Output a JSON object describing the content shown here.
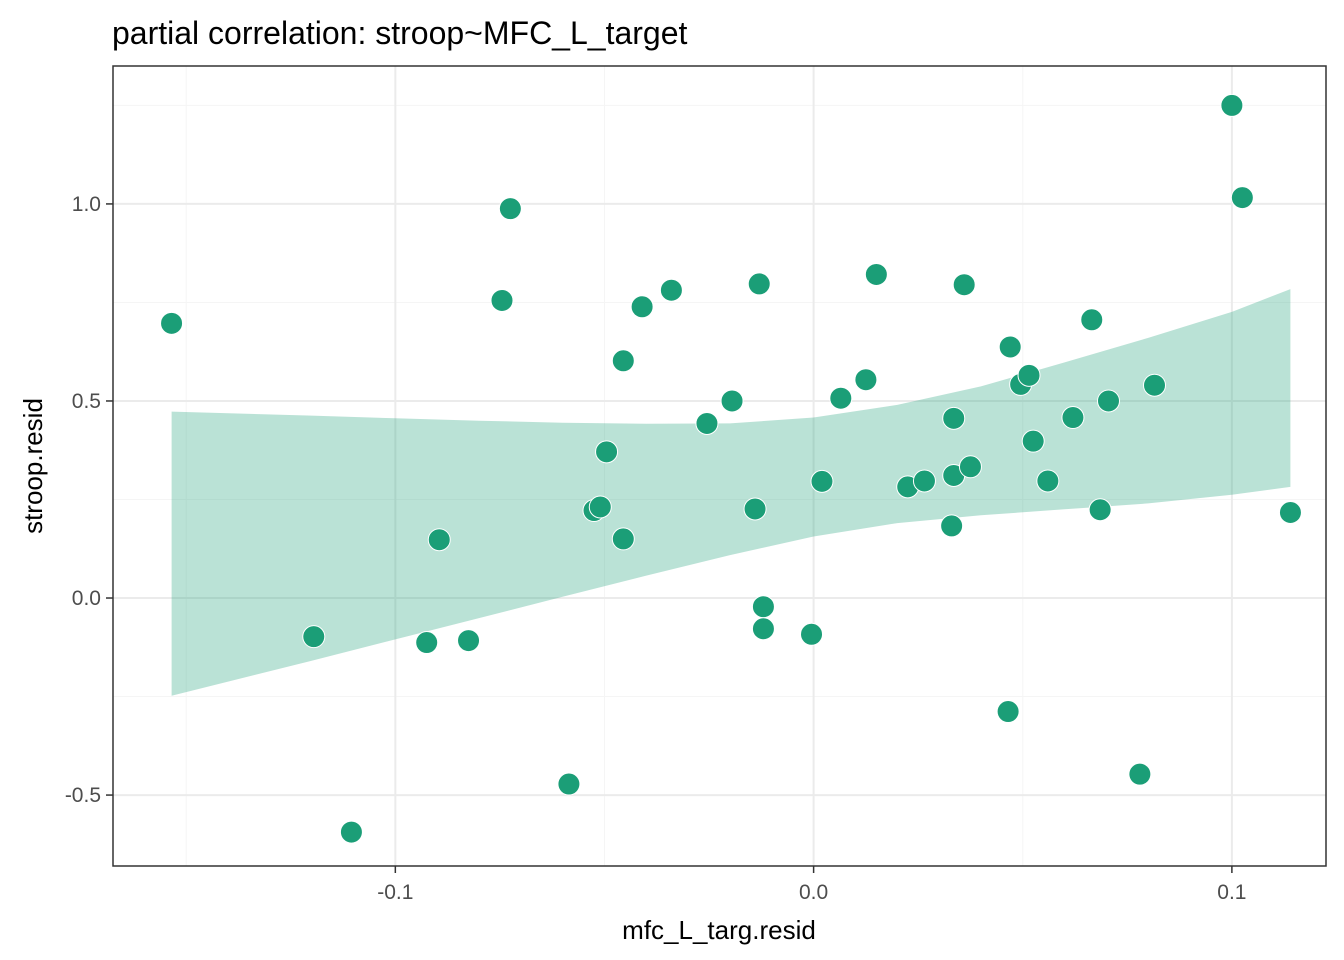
{
  "chart_data": {
    "type": "scatter",
    "title": "partial correlation: stroop~MFC_L_target",
    "xlabel": "mfc_L_targ.resid",
    "ylabel": "stroop.resid",
    "xlim": [
      -0.1675,
      0.1225
    ],
    "ylim": [
      -0.68,
      1.35
    ],
    "x_ticks": [
      -0.1,
      0.0,
      0.1
    ],
    "x_tick_labels": [
      "-0.1",
      "0.0",
      "0.1"
    ],
    "y_ticks": [
      -0.5,
      0.0,
      0.5,
      1.0
    ],
    "y_tick_labels": [
      "-0.5",
      "0.0",
      "0.5",
      "1.0"
    ],
    "grid": true,
    "theme": "bw",
    "colors": {
      "points": "#1b9e77",
      "ribbon": "#1b9e77",
      "grid_major": "#ebebeb",
      "grid_minor": "#f5f5f5",
      "panel_border": "#333333"
    },
    "points": [
      {
        "x": -0.1535,
        "y": 0.697
      },
      {
        "x": -0.1195,
        "y": -0.098
      },
      {
        "x": -0.1105,
        "y": -0.594
      },
      {
        "x": -0.0925,
        "y": -0.113
      },
      {
        "x": -0.0895,
        "y": 0.148
      },
      {
        "x": -0.0825,
        "y": -0.108
      },
      {
        "x": -0.0745,
        "y": 0.755
      },
      {
        "x": -0.0725,
        "y": 0.988
      },
      {
        "x": -0.0585,
        "y": -0.472
      },
      {
        "x": -0.0525,
        "y": 0.222
      },
      {
        "x": -0.051,
        "y": 0.231
      },
      {
        "x": -0.0495,
        "y": 0.371
      },
      {
        "x": -0.0455,
        "y": 0.602
      },
      {
        "x": -0.0455,
        "y": 0.15
      },
      {
        "x": -0.041,
        "y": 0.739
      },
      {
        "x": -0.034,
        "y": 0.781
      },
      {
        "x": -0.0255,
        "y": 0.443
      },
      {
        "x": -0.0195,
        "y": 0.5
      },
      {
        "x": -0.014,
        "y": 0.226
      },
      {
        "x": -0.013,
        "y": 0.797
      },
      {
        "x": -0.012,
        "y": -0.022
      },
      {
        "x": -0.012,
        "y": -0.078
      },
      {
        "x": -0.0005,
        "y": -0.092
      },
      {
        "x": 0.002,
        "y": 0.296
      },
      {
        "x": 0.0065,
        "y": 0.507
      },
      {
        "x": 0.0125,
        "y": 0.554
      },
      {
        "x": 0.015,
        "y": 0.821
      },
      {
        "x": 0.0225,
        "y": 0.282
      },
      {
        "x": 0.0265,
        "y": 0.297
      },
      {
        "x": 0.033,
        "y": 0.183
      },
      {
        "x": 0.0335,
        "y": 0.311
      },
      {
        "x": 0.0335,
        "y": 0.456
      },
      {
        "x": 0.036,
        "y": 0.795
      },
      {
        "x": 0.0375,
        "y": 0.333
      },
      {
        "x": 0.0465,
        "y": -0.288
      },
      {
        "x": 0.047,
        "y": 0.637
      },
      {
        "x": 0.0495,
        "y": 0.542
      },
      {
        "x": 0.0515,
        "y": 0.565
      },
      {
        "x": 0.0525,
        "y": 0.398
      },
      {
        "x": 0.056,
        "y": 0.297
      },
      {
        "x": 0.062,
        "y": 0.458
      },
      {
        "x": 0.0665,
        "y": 0.706
      },
      {
        "x": 0.0685,
        "y": 0.224
      },
      {
        "x": 0.0705,
        "y": 0.5
      },
      {
        "x": 0.078,
        "y": -0.447
      },
      {
        "x": 0.0815,
        "y": 0.54
      },
      {
        "x": 0.1,
        "y": 1.25
      },
      {
        "x": 0.1025,
        "y": 1.016
      },
      {
        "x": 0.114,
        "y": 0.217
      }
    ],
    "ribbon": {
      "x": [
        -0.1535,
        -0.12,
        -0.1,
        -0.08,
        -0.06,
        -0.04,
        -0.02,
        0.0,
        0.02,
        0.04,
        0.06,
        0.08,
        0.1,
        0.114
      ],
      "upper": [
        0.473,
        0.463,
        0.456,
        0.45,
        0.445,
        0.442,
        0.443,
        0.458,
        0.49,
        0.537,
        0.598,
        0.66,
        0.726,
        0.784
      ],
      "lower": [
        -0.248,
        -0.159,
        -0.105,
        -0.051,
        0.003,
        0.057,
        0.109,
        0.156,
        0.19,
        0.21,
        0.225,
        0.24,
        0.262,
        0.282
      ]
    }
  }
}
